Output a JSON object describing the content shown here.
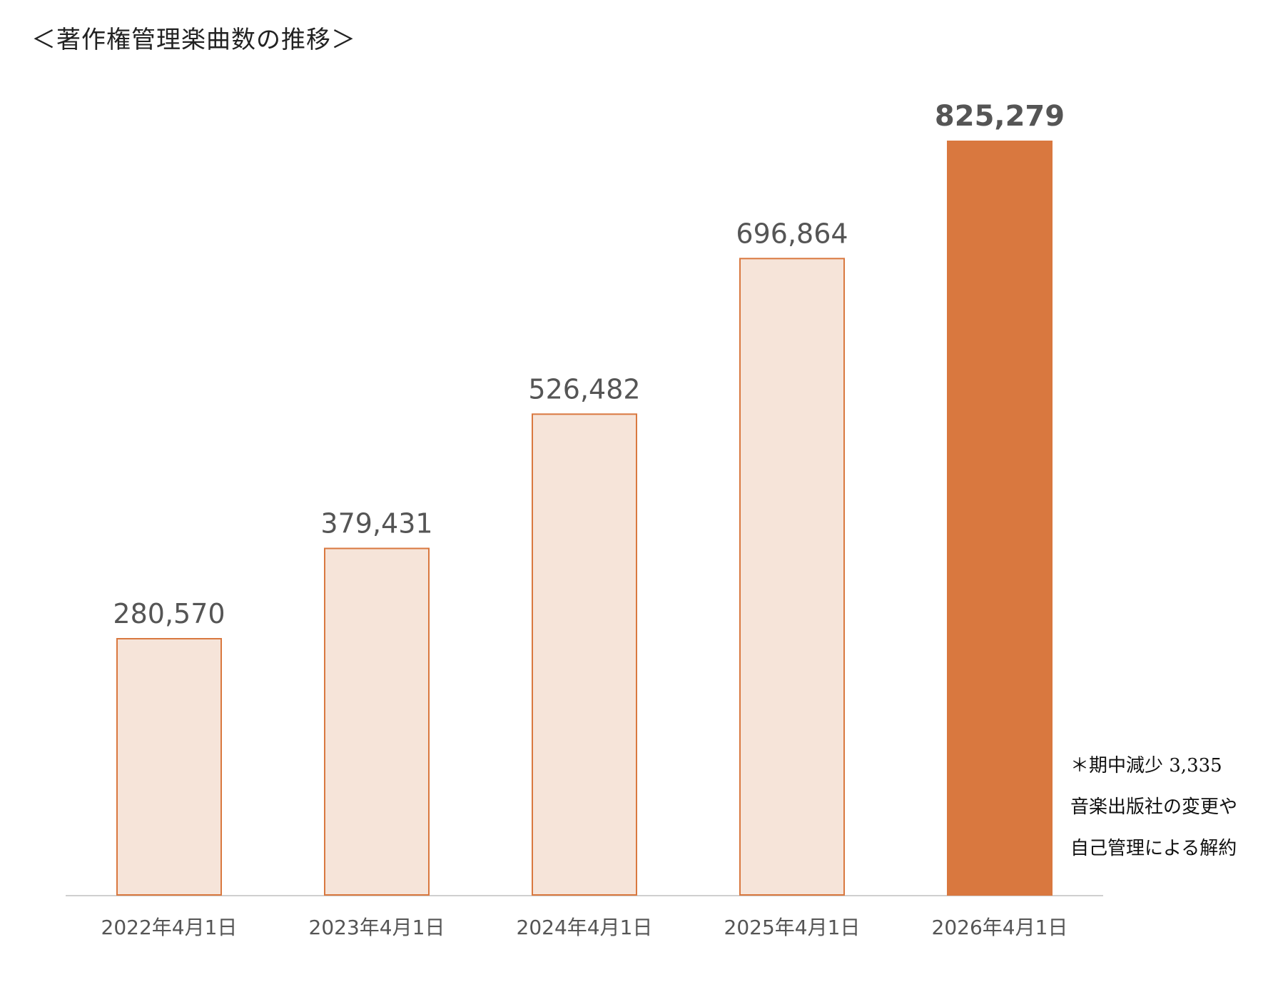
{
  "title": "＜著作権管理楽曲数の推移＞",
  "chart_data": {
    "type": "bar",
    "title": "＜著作権管理楽曲数の推移＞",
    "categories": [
      "2022年4月1日",
      "2023年4月1日",
      "2024年4月1日",
      "2025年4月1日",
      "2026年4月1日"
    ],
    "values": [
      280570,
      379431,
      526482,
      696864,
      825279
    ],
    "value_labels": [
      "280,570",
      "379,431",
      "526,482",
      "696,864",
      "825,279"
    ],
    "highlight_index": 4,
    "ylim": [
      0,
      825279
    ],
    "grid": false,
    "legend": "none",
    "colors": {
      "bar_fill": "#f6e4d9",
      "bar_stroke": "#d9783f",
      "highlight_fill": "#d9783f",
      "axis": "#cfcfcf",
      "label": "#555555"
    }
  },
  "note": {
    "line1": "＊期中減少 3,335",
    "line2": "音楽出版社の変更や",
    "line3": "自己管理による解約"
  }
}
